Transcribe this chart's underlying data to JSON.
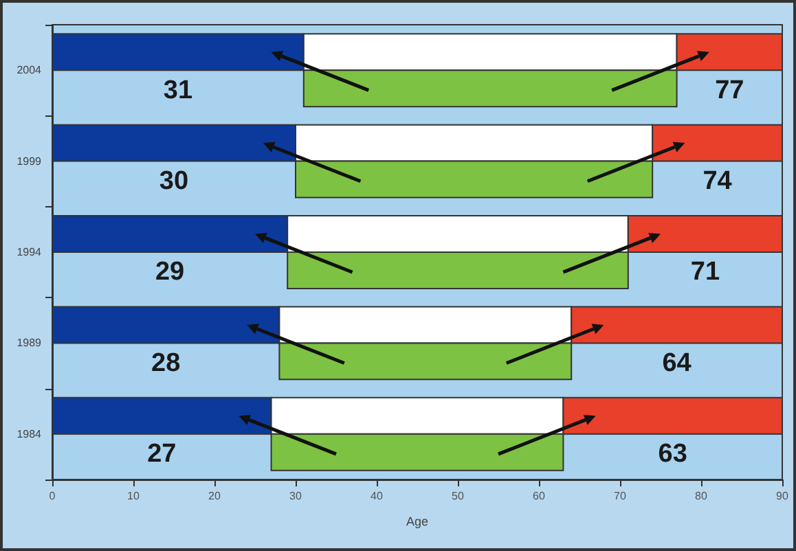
{
  "chart_data": {
    "type": "bar",
    "orientation": "horizontal",
    "xlabel": "Age",
    "categories": [
      "2004",
      "1999",
      "1994",
      "1989",
      "1984"
    ],
    "series": [
      {
        "color": "#0b3a9c",
        "base": [
          0,
          0,
          0,
          0,
          0
        ],
        "values": [
          31,
          30,
          29,
          28,
          27
        ]
      },
      {
        "color": "#ffffff",
        "base": [
          31,
          30,
          29,
          28,
          27
        ],
        "values": [
          46,
          44,
          42,
          36,
          36
        ]
      },
      {
        "color": "#e8402a",
        "base": [
          77,
          74,
          71,
          64,
          63
        ],
        "values": [
          13,
          16,
          19,
          26,
          27
        ]
      },
      {
        "color": "#7dc242",
        "base": [
          31,
          30,
          29,
          28,
          27
        ],
        "values": [
          46,
          44,
          42,
          36,
          36
        ]
      }
    ],
    "xlim": [
      0,
      90
    ],
    "xticks": [
      0,
      10,
      20,
      30,
      40,
      50,
      60,
      70,
      80,
      90
    ],
    "annotations": [
      "31",
      "77",
      "30",
      "74",
      "29",
      "71",
      "28",
      "64",
      "27",
      "63"
    ],
    "grid": false
  }
}
